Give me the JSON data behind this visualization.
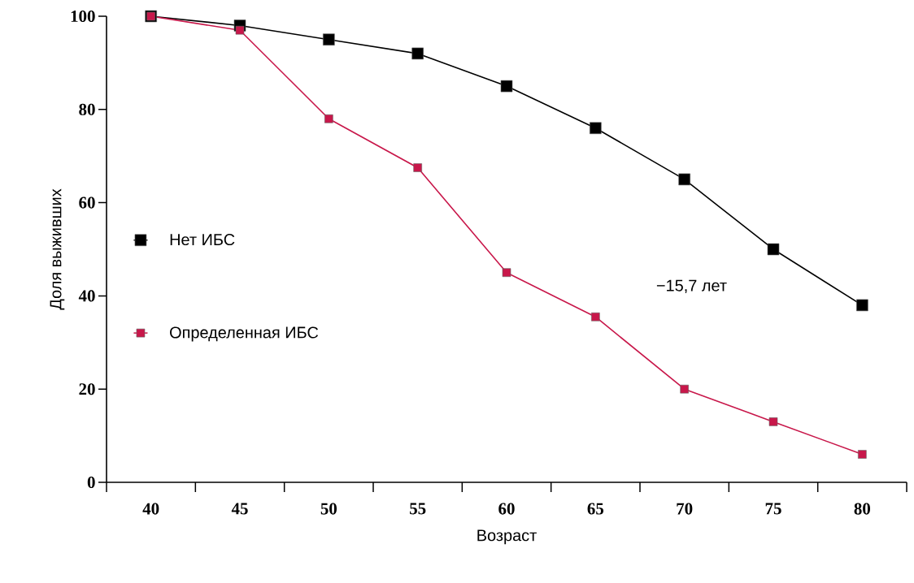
{
  "chart_data": {
    "type": "line",
    "xlabel": "Возраст",
    "ylabel": "Доля выживших",
    "categories": [
      "40",
      "45",
      "50",
      "55",
      "60",
      "65",
      "70",
      "75",
      "80"
    ],
    "series": [
      {
        "name": "Нет ИБС",
        "color": "#000000",
        "values": [
          100,
          98,
          95,
          92,
          85,
          76,
          65,
          50,
          38
        ]
      },
      {
        "name": "Определенная ИБС",
        "color": "#c8174a",
        "values": [
          100,
          97,
          78,
          67.5,
          45,
          35.5,
          20,
          13,
          6
        ]
      }
    ],
    "ylim": [
      0,
      100
    ],
    "yticks": [
      0,
      20,
      40,
      60,
      80,
      100
    ],
    "grid": false,
    "legend": "left",
    "marker": "square",
    "line_style": "solid",
    "annotations": [
      "−15,7 лет"
    ]
  }
}
